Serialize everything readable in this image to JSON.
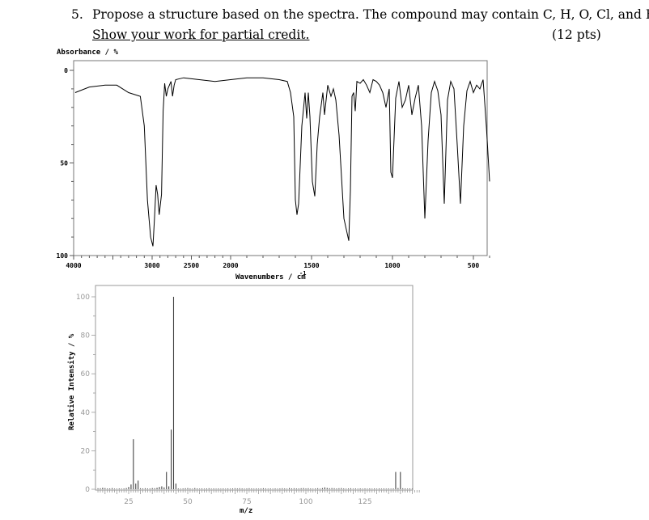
{
  "question": {
    "number": "5.",
    "text": "Propose a structure based on the spectra.  The compound may contain C, H, O, Cl, and Br.",
    "subtext": "Show your work for partial credit.",
    "points": "(12 pts)"
  },
  "chart_data": [
    {
      "type": "line",
      "ylabel": "Absorbance / %",
      "xlabel": "Wavenumbers / cm",
      "xlabel_superscript": "-1",
      "x_ticks": [
        "4000",
        "3000",
        "2500",
        "2000",
        "1500",
        "1000",
        "500"
      ],
      "y_ticks": [
        "0",
        "50",
        "100"
      ],
      "xlim": [
        4000,
        400
      ],
      "ylim": [
        0,
        100
      ],
      "y_inverted": true,
      "x": [
        3980,
        3800,
        3600,
        3450,
        3300,
        3150,
        3100,
        3060,
        3020,
        2990,
        2970,
        2950,
        2930,
        2910,
        2880,
        2860,
        2840,
        2820,
        2800,
        2760,
        2740,
        2720,
        2700,
        2600,
        2400,
        2200,
        2000,
        1900,
        1800,
        1700,
        1650,
        1630,
        1610,
        1600,
        1590,
        1580,
        1560,
        1540,
        1530,
        1520,
        1510,
        1495,
        1480,
        1465,
        1450,
        1430,
        1420,
        1400,
        1380,
        1365,
        1350,
        1330,
        1300,
        1270,
        1260,
        1250,
        1240,
        1230,
        1220,
        1200,
        1180,
        1160,
        1140,
        1120,
        1100,
        1080,
        1060,
        1040,
        1020,
        1010,
        1000,
        980,
        960,
        940,
        920,
        900,
        880,
        860,
        840,
        820,
        800,
        780,
        760,
        740,
        720,
        700,
        680,
        660,
        640,
        620,
        600,
        580,
        560,
        540,
        520,
        500,
        480,
        460,
        440,
        420,
        400
      ],
      "y": [
        12,
        9,
        8,
        8,
        12,
        14,
        30,
        70,
        90,
        95,
        80,
        62,
        67,
        78,
        67,
        22,
        7,
        14,
        10,
        6,
        14,
        8,
        5,
        4,
        5,
        6,
        5,
        4,
        4,
        5,
        6,
        12,
        25,
        70,
        78,
        72,
        30,
        12,
        26,
        12,
        25,
        60,
        68,
        40,
        25,
        12,
        24,
        8,
        14,
        10,
        16,
        35,
        80,
        92,
        65,
        14,
        12,
        22,
        6,
        7,
        5,
        8,
        12,
        5,
        6,
        8,
        12,
        20,
        10,
        55,
        58,
        15,
        6,
        20,
        16,
        8,
        24,
        15,
        8,
        30,
        80,
        38,
        12,
        6,
        11,
        24,
        72,
        16,
        6,
        10,
        40,
        72,
        30,
        11,
        6,
        12,
        8,
        10,
        5,
        30,
        60
      ]
    },
    {
      "type": "bar",
      "ylabel": "Relative Intensity / %",
      "xlabel": "m/z",
      "x_ticks": [
        "25",
        "50",
        "75",
        "100",
        "125"
      ],
      "y_ticks": [
        "0",
        "20",
        "40",
        "60",
        "80",
        "100"
      ],
      "xlim": [
        10,
        150
      ],
      "ylim": [
        0,
        100
      ],
      "x": [
        12,
        13,
        14,
        15,
        16,
        17,
        18,
        19,
        20,
        21,
        22,
        23,
        24,
        25,
        26,
        27,
        28,
        29,
        30,
        31,
        32,
        33,
        34,
        35,
        36,
        37,
        38,
        39,
        40,
        41,
        42,
        43,
        44,
        45,
        46,
        47,
        48,
        49,
        50,
        51,
        52,
        53,
        54,
        55,
        56,
        57,
        58,
        59,
        60,
        61,
        62,
        63,
        64,
        65,
        66,
        67,
        68,
        69,
        70,
        71,
        72,
        73,
        74,
        75,
        76,
        77,
        78,
        79,
        80,
        81,
        82,
        83,
        84,
        85,
        86,
        87,
        88,
        89,
        90,
        91,
        92,
        93,
        94,
        95,
        96,
        97,
        98,
        99,
        100,
        101,
        102,
        103,
        104,
        105,
        106,
        107,
        108,
        109,
        110,
        111,
        112,
        113,
        114,
        115,
        116,
        117,
        118,
        119,
        120,
        121,
        122,
        123,
        124,
        125,
        126,
        127,
        128,
        129,
        130,
        131,
        132,
        133,
        134,
        135,
        136,
        137,
        138,
        139,
        140,
        141,
        142,
        143,
        144,
        145
      ],
      "values": [
        0.5,
        0.5,
        0.8,
        0.6,
        0.4,
        0.4,
        0.6,
        0.3,
        0.3,
        0.4,
        0.3,
        0.4,
        0.6,
        1.2,
        2.5,
        26,
        3,
        4.5,
        0.5,
        0.4,
        0.5,
        0.4,
        0.4,
        0.6,
        0.5,
        0.8,
        1.2,
        1.5,
        1,
        9,
        1.5,
        31,
        100,
        3,
        0.4,
        0.3,
        0.4,
        0.5,
        0.6,
        0.4,
        0.3,
        0.6,
        0.4,
        0.3,
        0.4,
        0.3,
        0.4,
        0.5,
        0.3,
        0.4,
        0.3,
        0.4,
        0.3,
        0.4,
        0.3,
        0.4,
        0.3,
        0.4,
        0.5,
        0.4,
        0.5,
        0.4,
        0.3,
        0.4,
        0.5,
        0.4,
        0.3,
        0.4,
        0.3,
        0.4,
        0.5,
        0.4,
        0.3,
        0.4,
        0.3,
        0.4,
        0.3,
        0.4,
        0.5,
        0.4,
        0.3,
        0.6,
        0.4,
        0.5,
        0.4,
        0.4,
        0.5,
        0.6,
        0.4,
        0.5,
        0.4,
        0.3,
        0.4,
        0.5,
        0.3,
        0.6,
        1,
        0.7,
        0.5,
        0.6,
        0.5,
        0.4,
        0.5,
        0.6,
        0.4,
        0.3,
        0.4,
        0.5,
        0.3,
        0.4,
        0.3,
        0.4,
        0.3,
        0.4,
        0.3,
        0.4,
        0.3,
        0.4,
        0.3,
        0.4,
        0.3,
        0.4,
        0.3,
        0.4,
        0.3,
        0.4,
        9,
        0.6,
        9,
        0.5,
        0.4,
        0.3,
        0.4,
        0.3
      ]
    }
  ]
}
